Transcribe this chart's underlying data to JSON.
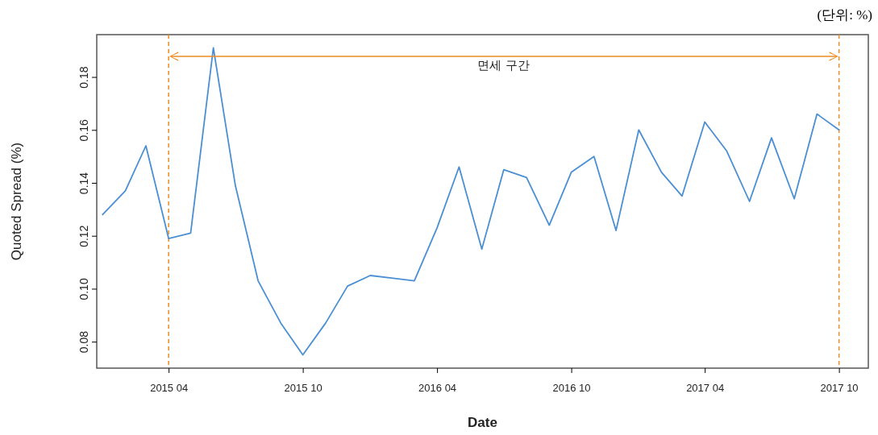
{
  "chart_data": {
    "type": "line",
    "xlabel": "Date",
    "ylabel": "Quoted Spread (%)",
    "x": [
      "2015-01",
      "2015-02",
      "2015-03",
      "2015-04",
      "2015-05",
      "2015-06",
      "2015-07",
      "2015-08",
      "2015-09",
      "2015-10",
      "2015-11",
      "2015-12",
      "2016-01",
      "2016-02",
      "2016-03",
      "2016-04",
      "2016-05",
      "2016-06",
      "2016-07",
      "2016-08",
      "2016-09",
      "2016-10",
      "2016-11",
      "2016-12",
      "2017-01",
      "2017-02",
      "2017-03",
      "2017-04",
      "2017-05",
      "2017-06",
      "2017-07",
      "2017-08",
      "2017-09",
      "2017-10"
    ],
    "series": [
      {
        "color": "#4a8fd4",
        "values": [
          0.128,
          0.137,
          0.154,
          0.119,
          0.121,
          0.191,
          0.139,
          0.103,
          0.087,
          0.075,
          0.087,
          0.101,
          0.105,
          0.104,
          0.103,
          0.123,
          0.146,
          0.115,
          0.145,
          0.142,
          0.124,
          0.144,
          0.15,
          0.122,
          0.16,
          0.144,
          0.135,
          0.163,
          0.152,
          0.133,
          0.157,
          0.134,
          0.166,
          0.16
        ]
      }
    ],
    "xlim": [
      "2014-12-24",
      "2017-11-10"
    ],
    "xticks": [
      {
        "value": "2015-04",
        "label": "2015 04"
      },
      {
        "value": "2015-10",
        "label": "2015 10"
      },
      {
        "value": "2016-04",
        "label": "2016 04"
      },
      {
        "value": "2016-10",
        "label": "2016 10"
      },
      {
        "value": "2017-04",
        "label": "2017 04"
      },
      {
        "value": "2017-10",
        "label": "2017 10"
      }
    ],
    "ylim": [
      0.07,
      0.196
    ],
    "yticks": [
      {
        "value": 0.08,
        "label": "0.08"
      },
      {
        "value": 0.1,
        "label": "0.10"
      },
      {
        "value": 0.12,
        "label": "0.12"
      },
      {
        "value": 0.14,
        "label": "0.14"
      },
      {
        "value": 0.16,
        "label": "0.16"
      },
      {
        "value": 0.18,
        "label": "0.18"
      }
    ],
    "ref_lines": [
      {
        "axis": "x",
        "value": "2015-04",
        "color": "#f08a24",
        "line_style": "dashed"
      },
      {
        "axis": "x",
        "value": "2017-10",
        "color": "#f08a24",
        "line_style": "dashed"
      }
    ],
    "annotations": [
      "(단위: %)",
      "면세 구간"
    ],
    "marker": "none",
    "line_style": "solid",
    "grid": false
  }
}
